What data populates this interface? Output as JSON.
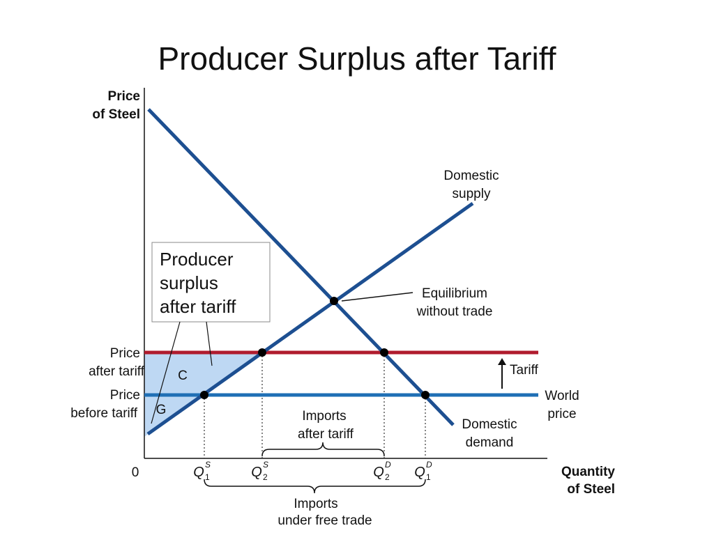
{
  "title": "Producer Surplus after Tariff",
  "axes": {
    "y_label": [
      "Price",
      "of Steel"
    ],
    "x_label": [
      "Quantity",
      "of Steel"
    ],
    "origin": "0"
  },
  "curves": {
    "supply": [
      "Domestic",
      "supply"
    ],
    "demand": [
      "Domestic",
      "demand"
    ],
    "world_price": [
      "World",
      "price"
    ],
    "tariff": "Tariff"
  },
  "equilibrium": [
    "Equilibrium",
    "without trade"
  ],
  "price_labels": {
    "after_tariff": [
      "Price",
      "after tariff"
    ],
    "before_tariff": [
      "Price",
      "before tariff"
    ]
  },
  "callout": [
    "Producer",
    "surplus",
    "after tariff"
  ],
  "regions": {
    "c": "C",
    "g": "G"
  },
  "quantities": [
    {
      "symbol": "Q",
      "sub": "1",
      "sup": "S"
    },
    {
      "symbol": "Q",
      "sub": "2",
      "sup": "S"
    },
    {
      "symbol": "Q",
      "sub": "2",
      "sup": "D"
    },
    {
      "symbol": "Q",
      "sub": "1",
      "sup": "D"
    }
  ],
  "imports": {
    "after_tariff": [
      "Imports",
      "after tariff"
    ],
    "free_trade": [
      "Imports",
      "under free trade"
    ]
  }
}
